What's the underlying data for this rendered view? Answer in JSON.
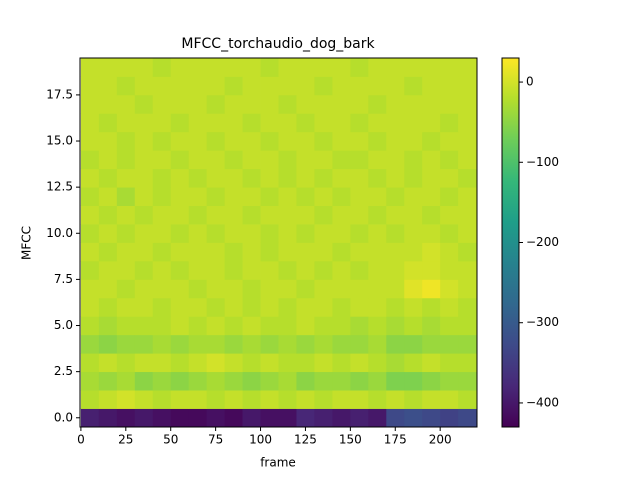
{
  "chart_data": {
    "type": "heatmap",
    "title": "MFCC_torchaudio_dog_bark",
    "xlabel": "frame",
    "ylabel": "MFCC",
    "xbins": [
      0,
      10,
      20,
      30,
      40,
      50,
      60,
      70,
      80,
      90,
      100,
      110,
      120,
      130,
      140,
      150,
      160,
      170,
      180,
      190,
      200,
      210,
      220
    ],
    "rows": [
      0,
      1,
      2,
      3,
      4,
      5,
      6,
      7,
      8,
      9,
      10,
      11,
      12,
      13,
      14,
      15,
      16,
      17,
      18,
      19
    ],
    "values": [
      [
        -390,
        -400,
        -410,
        -400,
        -410,
        -420,
        -420,
        -410,
        -420,
        -400,
        -410,
        -410,
        -380,
        -390,
        -400,
        -390,
        -400,
        -330,
        -320,
        -330,
        -340,
        -330
      ],
      [
        -20,
        -10,
        0,
        -10,
        -20,
        -10,
        -10,
        -20,
        -10,
        -20,
        -10,
        -20,
        -10,
        -20,
        -10,
        -10,
        -20,
        -10,
        -20,
        -10,
        -10,
        -20
      ],
      [
        -30,
        -40,
        -30,
        -50,
        -40,
        -50,
        -40,
        -30,
        -40,
        -50,
        -40,
        -30,
        -50,
        -40,
        -40,
        -50,
        -40,
        -60,
        -60,
        -50,
        -40,
        -40
      ],
      [
        -20,
        -10,
        -20,
        -10,
        -10,
        -20,
        -10,
        0,
        -10,
        -20,
        -10,
        -20,
        -20,
        -10,
        -20,
        -10,
        -20,
        -30,
        -20,
        -10,
        -20,
        -20
      ],
      [
        -40,
        -50,
        -40,
        -40,
        -30,
        -40,
        -30,
        -30,
        -40,
        -30,
        -40,
        -30,
        -40,
        -30,
        -40,
        -40,
        -30,
        -50,
        -50,
        -40,
        -40,
        -40
      ],
      [
        -20,
        -30,
        -20,
        -20,
        -20,
        -10,
        -20,
        -10,
        -20,
        -10,
        -20,
        -20,
        -10,
        -20,
        -20,
        -30,
        -20,
        -30,
        -20,
        -30,
        -20,
        -20
      ],
      [
        -10,
        -20,
        -10,
        -10,
        -20,
        -10,
        -10,
        -20,
        -10,
        -20,
        -10,
        -20,
        -10,
        -10,
        -20,
        -10,
        -10,
        -20,
        -10,
        -20,
        -10,
        -20
      ],
      [
        -10,
        -10,
        -20,
        -10,
        -10,
        -10,
        -20,
        -10,
        -10,
        -20,
        -10,
        -10,
        -20,
        -10,
        -10,
        -10,
        -10,
        -10,
        10,
        20,
        0,
        -10
      ],
      [
        -20,
        -10,
        -10,
        -20,
        -10,
        -20,
        -10,
        -10,
        -20,
        -10,
        -10,
        -20,
        -10,
        -20,
        -10,
        -20,
        -10,
        -10,
        0,
        0,
        -10,
        -10
      ],
      [
        -10,
        -20,
        -10,
        -10,
        -20,
        -10,
        -10,
        -10,
        -20,
        -10,
        -20,
        -10,
        -10,
        -10,
        -20,
        -10,
        -10,
        -10,
        -10,
        0,
        -10,
        -20
      ],
      [
        -20,
        -10,
        -20,
        -10,
        -10,
        -20,
        -10,
        -20,
        -10,
        -10,
        -20,
        -10,
        -20,
        -10,
        -10,
        -20,
        -10,
        -20,
        -10,
        -10,
        -20,
        -10
      ],
      [
        -10,
        -20,
        -10,
        -20,
        -10,
        -10,
        -20,
        -10,
        -10,
        -20,
        -10,
        -10,
        -10,
        -20,
        -10,
        -10,
        -20,
        -10,
        -10,
        -20,
        -10,
        -10
      ],
      [
        -20,
        -10,
        -30,
        -10,
        -20,
        -10,
        -10,
        -20,
        -10,
        -10,
        -20,
        -10,
        -20,
        -10,
        -20,
        -10,
        -10,
        -20,
        -10,
        -10,
        -20,
        -10
      ],
      [
        -10,
        -20,
        -10,
        -10,
        -20,
        -10,
        -20,
        -10,
        -10,
        -20,
        -10,
        -20,
        -10,
        -20,
        -10,
        -10,
        -20,
        -10,
        -20,
        -10,
        -10,
        -20
      ],
      [
        -20,
        -10,
        -20,
        -10,
        -10,
        -20,
        -10,
        -10,
        -20,
        -10,
        -10,
        -20,
        -10,
        -10,
        -20,
        -20,
        -10,
        -10,
        -20,
        -10,
        -20,
        -10
      ],
      [
        -10,
        -10,
        -20,
        -10,
        -20,
        -10,
        -10,
        -20,
        -10,
        -10,
        -20,
        -10,
        -10,
        -20,
        -10,
        -10,
        -20,
        -10,
        -10,
        -20,
        -10,
        -10
      ],
      [
        -10,
        -20,
        -10,
        -10,
        -10,
        -20,
        -10,
        -10,
        -10,
        -20,
        -10,
        -10,
        -20,
        -10,
        -10,
        -20,
        -10,
        -10,
        -10,
        -10,
        -20,
        -10
      ],
      [
        -10,
        -10,
        -10,
        -20,
        -10,
        -10,
        -10,
        -20,
        -10,
        -10,
        -10,
        -20,
        -10,
        -10,
        -10,
        -10,
        -20,
        -10,
        -10,
        -10,
        -10,
        -10
      ],
      [
        -10,
        -10,
        -20,
        -10,
        -10,
        -10,
        -10,
        -10,
        -20,
        -10,
        -10,
        -10,
        -10,
        -20,
        -10,
        -10,
        -10,
        -10,
        -20,
        -10,
        -10,
        -10
      ],
      [
        -10,
        -10,
        -10,
        -10,
        -20,
        -10,
        -10,
        -10,
        -10,
        -10,
        -20,
        -10,
        -10,
        -10,
        -10,
        -20,
        -10,
        -10,
        -10,
        -10,
        -10,
        -10
      ]
    ],
    "xlim": [
      -0.5,
      220.5
    ],
    "ylim": [
      -0.5,
      19.5
    ],
    "clim": [
      -430,
      30
    ],
    "xticks": [
      0,
      25,
      50,
      75,
      100,
      125,
      150,
      175,
      200
    ],
    "yticks": [
      {
        "value": 0,
        "label": "0.0"
      },
      {
        "value": 2.5,
        "label": "2.5"
      },
      {
        "value": 5,
        "label": "5.0"
      },
      {
        "value": 7.5,
        "label": "7.5"
      },
      {
        "value": 10,
        "label": "10.0"
      },
      {
        "value": 12.5,
        "label": "12.5"
      },
      {
        "value": 15,
        "label": "15.0"
      },
      {
        "value": 17.5,
        "label": "17.5"
      }
    ],
    "cticks": [
      {
        "value": -400,
        "label": "−400"
      },
      {
        "value": -300,
        "label": "−300"
      },
      {
        "value": -200,
        "label": "−200"
      },
      {
        "value": -100,
        "label": "−100"
      },
      0
    ],
    "colormap": "viridis"
  }
}
